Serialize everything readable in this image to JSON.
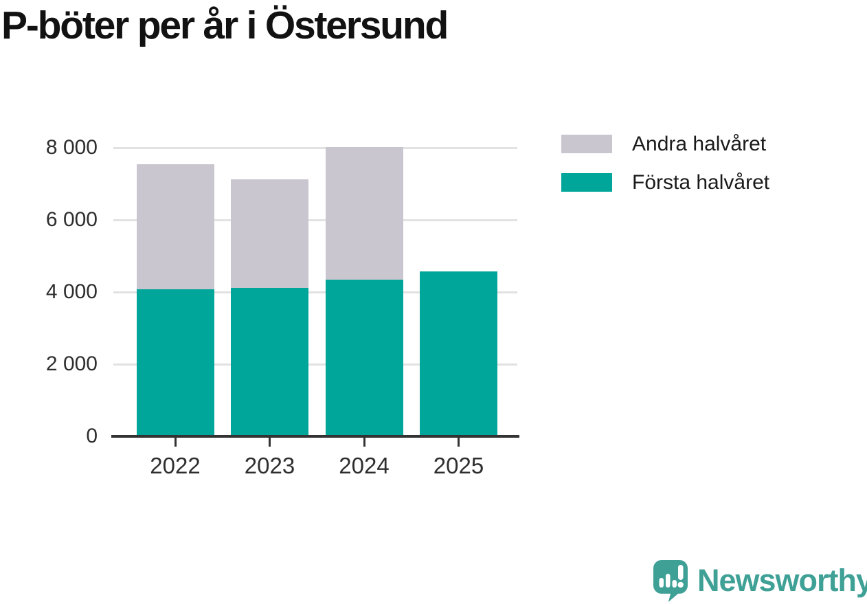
{
  "header": {
    "title": "P-böter per år i Östersund"
  },
  "legend": {
    "items": [
      {
        "label": "Andra halvåret",
        "color": "#c9c6cf"
      },
      {
        "label": "Första halvåret",
        "color": "#00a69a"
      }
    ]
  },
  "branding": {
    "name": "Newsworthy",
    "color": "#3fa096",
    "icon": "speech-bubble-bar-chart-exclamation"
  },
  "chart_data": {
    "type": "bar",
    "stacked": true,
    "title": "P-böter per år i Östersund",
    "categories": [
      "2022",
      "2023",
      "2024",
      "2025"
    ],
    "series": [
      {
        "name": "Första halvåret",
        "color": "#00a69a",
        "values": [
          4080,
          4110,
          4350,
          4570
        ]
      },
      {
        "name": "Andra halvåret",
        "color": "#c9c6cf",
        "values": [
          3460,
          3020,
          3670,
          0
        ]
      }
    ],
    "totals": [
      7540,
      7130,
      8020,
      4570
    ],
    "ylim": [
      0,
      8000
    ],
    "yticks": [
      0,
      2000,
      4000,
      6000,
      8000
    ],
    "ytick_labels": [
      "0",
      "2 000",
      "4 000",
      "6 000",
      "8 000"
    ],
    "xlabel": "",
    "ylabel": "",
    "grid": "horizontal",
    "legend_position": "top-right",
    "stack_order_bottom_to_top": [
      "Första halvåret",
      "Andra halvåret"
    ]
  }
}
